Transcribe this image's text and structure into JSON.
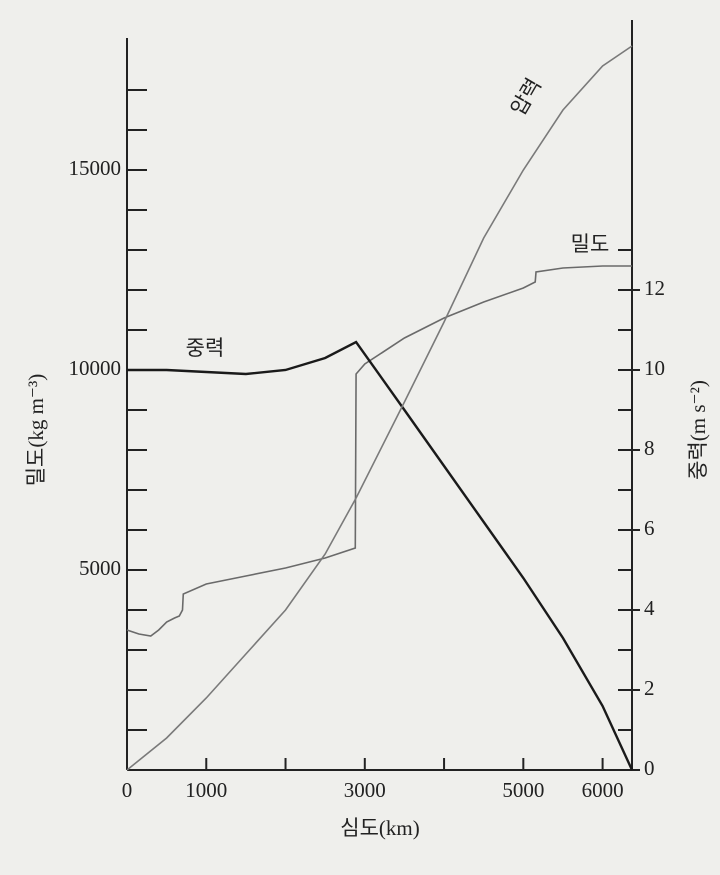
{
  "chart_data": {
    "type": "line",
    "xlabel": "심도(km)",
    "ylabel": "밀도(kg m⁻³)",
    "y2label": "중력(m s⁻²)",
    "xlim": [
      0,
      6371
    ],
    "xticks": [
      0,
      1000,
      3000,
      5000,
      6000
    ],
    "xminorticks": [
      2000,
      4000
    ],
    "ylim": [
      0,
      18300
    ],
    "yticks": [
      5000,
      10000,
      15000
    ],
    "yminorticks": [
      1000,
      2000,
      3000,
      4000,
      6000,
      7000,
      8000,
      9000,
      11000,
      12000,
      13000,
      14000,
      16000,
      17000
    ],
    "y2lim": [
      0,
      18.3
    ],
    "y2ticks": [
      0,
      2,
      4,
      6,
      8,
      10,
      12
    ],
    "y2minorticks": [
      1,
      3,
      5,
      7,
      9,
      11,
      13
    ],
    "series": [
      {
        "name": "밀도",
        "color": "#6a6a6a",
        "axis": "y",
        "x": [
          0,
          150,
          300,
          400,
          500,
          600,
          660,
          700,
          710,
          1000,
          1500,
          2000,
          2500,
          2880,
          2890,
          3000,
          3500,
          4000,
          4500,
          5000,
          5150,
          5160,
          5500,
          6000,
          6371
        ],
        "values": [
          3500,
          3400,
          3350,
          3500,
          3700,
          3800,
          3850,
          4000,
          4400,
          4650,
          4850,
          5050,
          5300,
          5550,
          9900,
          10150,
          10800,
          11300,
          11700,
          12050,
          12200,
          12450,
          12550,
          12600,
          12600
        ]
      },
      {
        "name": "중력",
        "color": "#1a1a1a",
        "axis": "y2",
        "x": [
          0,
          500,
          1000,
          1500,
          2000,
          2500,
          2890,
          3500,
          4000,
          4500,
          5000,
          5500,
          6000,
          6371
        ],
        "values": [
          10.0,
          10.0,
          9.95,
          9.9,
          10.0,
          10.3,
          10.7,
          9.0,
          7.6,
          6.2,
          4.8,
          3.3,
          1.6,
          0
        ]
      },
      {
        "name": "압력",
        "color": "#7a7a7a",
        "axis": "y",
        "x": [
          0,
          500,
          1000,
          1500,
          2000,
          2500,
          2890,
          3500,
          4000,
          4500,
          5000,
          5500,
          6000,
          6371
        ],
        "values": [
          0,
          800,
          1800,
          2900,
          4000,
          5400,
          6800,
          9200,
          11200,
          13300,
          15000,
          16500,
          17600,
          18100
        ]
      }
    ]
  }
}
